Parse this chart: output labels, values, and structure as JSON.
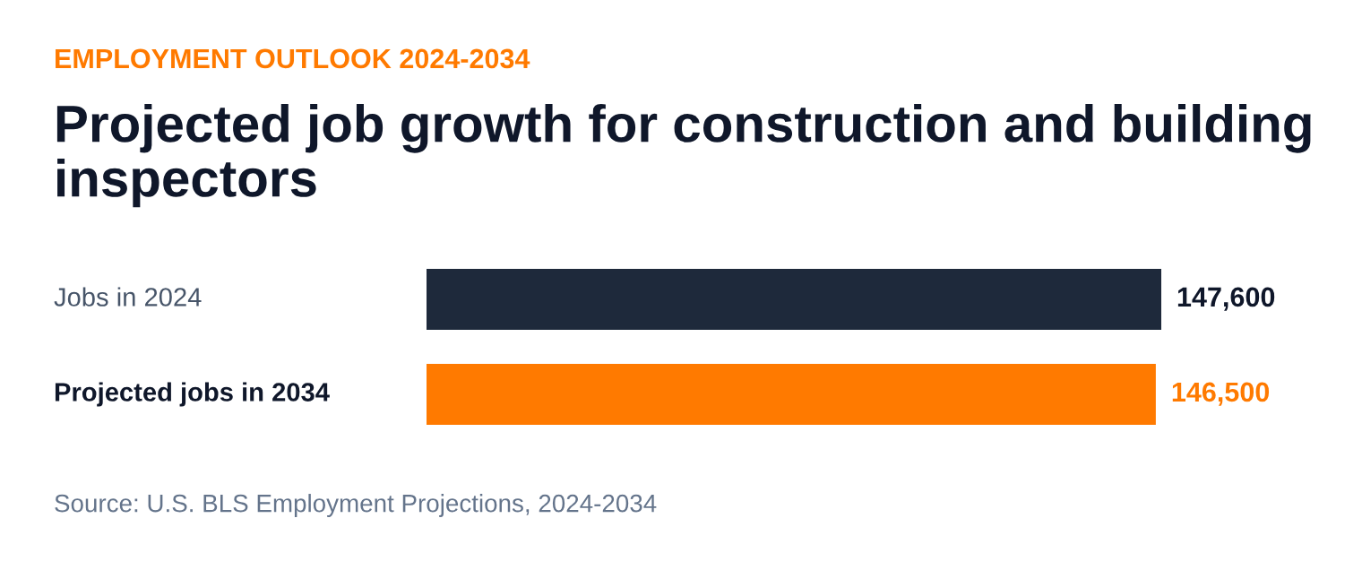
{
  "chart_data": {
    "type": "bar",
    "orientation": "horizontal",
    "subtitle": "EMPLOYMENT OUTLOOK 2024-2034",
    "title": "Projected job growth for construction and building inspectors",
    "categories": [
      "Jobs in 2024",
      "Projected jobs in 2034"
    ],
    "values": [
      147600,
      146500
    ],
    "colors": [
      "#1e293b",
      "#ff7a00"
    ],
    "value_labels": [
      "147,600",
      "146,500"
    ],
    "annotations": [
      "Source: U.S. BLS Employment Projections, 2024-2034"
    ],
    "grid": false,
    "legend": false,
    "tick_labels": false
  }
}
